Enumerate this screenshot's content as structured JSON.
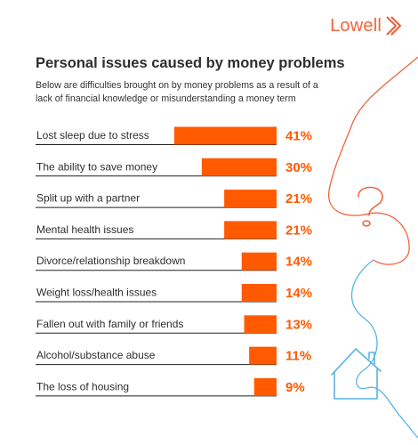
{
  "brand": {
    "name": "Lowell",
    "color": "#f0643c"
  },
  "decor": {
    "question_line_color": "#f0643c",
    "house_line_color": "#5ab3e0"
  },
  "chart_data": {
    "type": "bar",
    "orientation": "horizontal",
    "title": "Personal issues caused by money problems",
    "subtitle": "Below are difficulties brought on by money problems as a result of a lack of financial knowledge or misunderstanding a money term",
    "categories": [
      "Lost sleep due to stress",
      "The ability to save money",
      "Split up with a partner",
      "Mental health issues",
      "Divorce/relationship breakdown",
      "Weight loss/health issues",
      "Fallen out with family or friends",
      "Alcohol/substance abuse",
      "The loss of housing"
    ],
    "values": [
      41,
      30,
      21,
      21,
      14,
      14,
      13,
      11,
      9
    ],
    "value_labels": [
      "41%",
      "30%",
      "21%",
      "21%",
      "14%",
      "14%",
      "13%",
      "11%",
      "9%"
    ],
    "unit": "%",
    "bar_color": "#ff5a00",
    "value_color": "#ff5a00",
    "divider_color": "#222222",
    "xlim": [
      0,
      41
    ],
    "grid": false,
    "legend": "none"
  }
}
